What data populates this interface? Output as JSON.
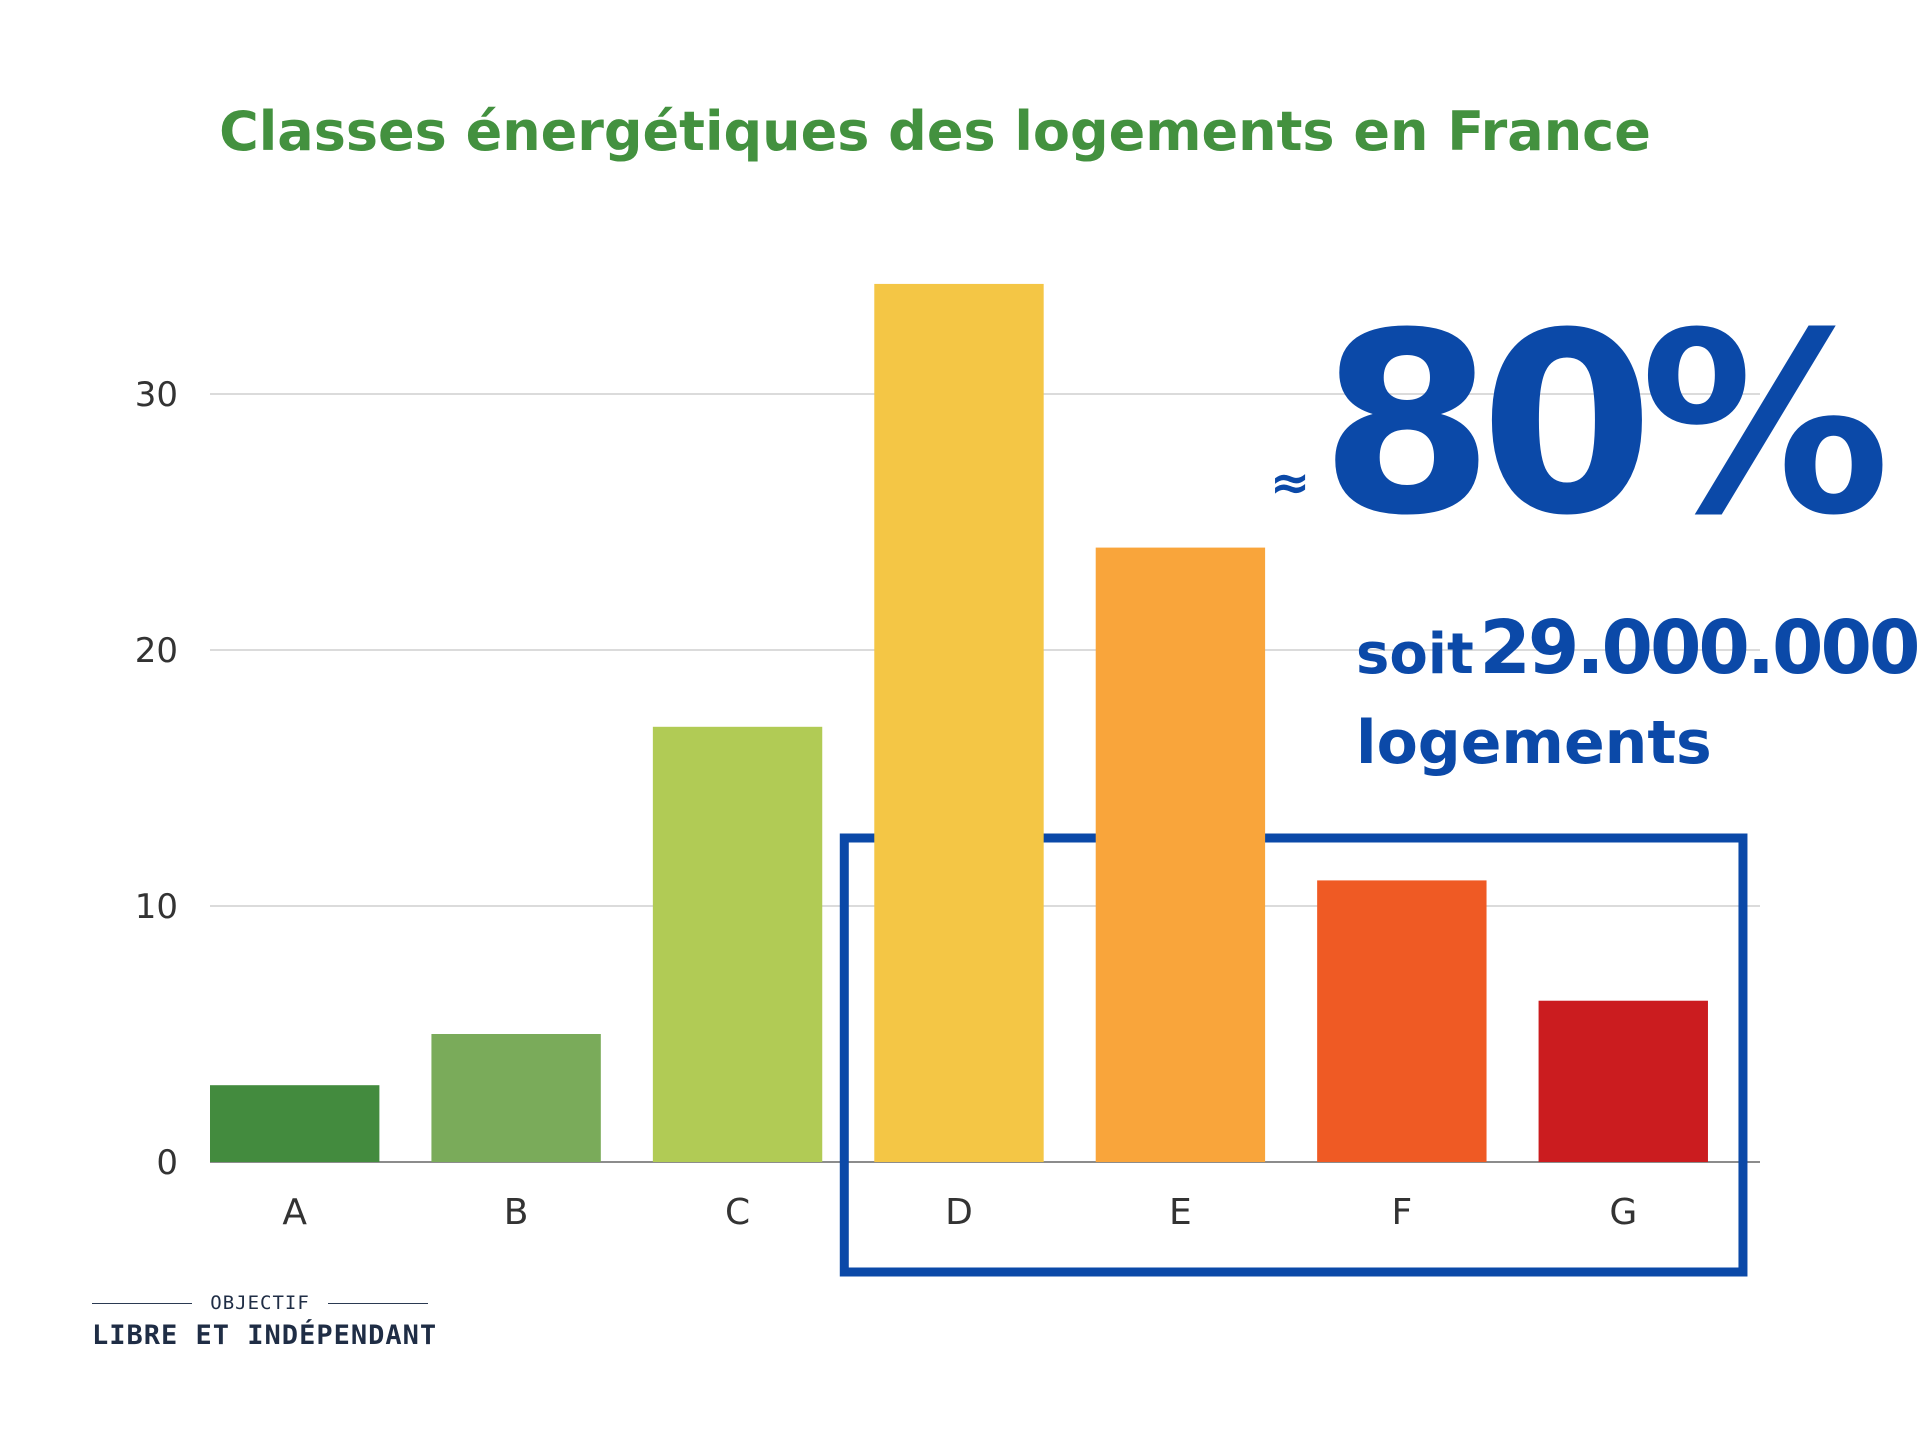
{
  "chart_data": {
    "type": "bar",
    "title": "Classes énergétiques des logements en France",
    "categories": [
      "A",
      "B",
      "C",
      "D",
      "E",
      "F",
      "G"
    ],
    "values": [
      3,
      5,
      17,
      34.3,
      24,
      11,
      6.3
    ],
    "colors": [
      "#438b3e",
      "#7aab5a",
      "#b1cb55",
      "#f4c645",
      "#f9a53b",
      "#ef5a24",
      "#cb1c1f"
    ],
    "ylim": [
      0,
      35
    ],
    "yticks": [
      0,
      10,
      20,
      30
    ],
    "grid": true,
    "highlight": {
      "categories": [
        "D",
        "E",
        "F",
        "G"
      ],
      "color": "#0b49a8"
    }
  },
  "annotation": {
    "approx": "≈",
    "percent": "80%",
    "line1_word": "soit",
    "line1_number": "29.000.000",
    "line2": "logements"
  },
  "logo": {
    "top": "OBJECTIF",
    "main": "LIBRE ET INDÉPENDANT"
  }
}
